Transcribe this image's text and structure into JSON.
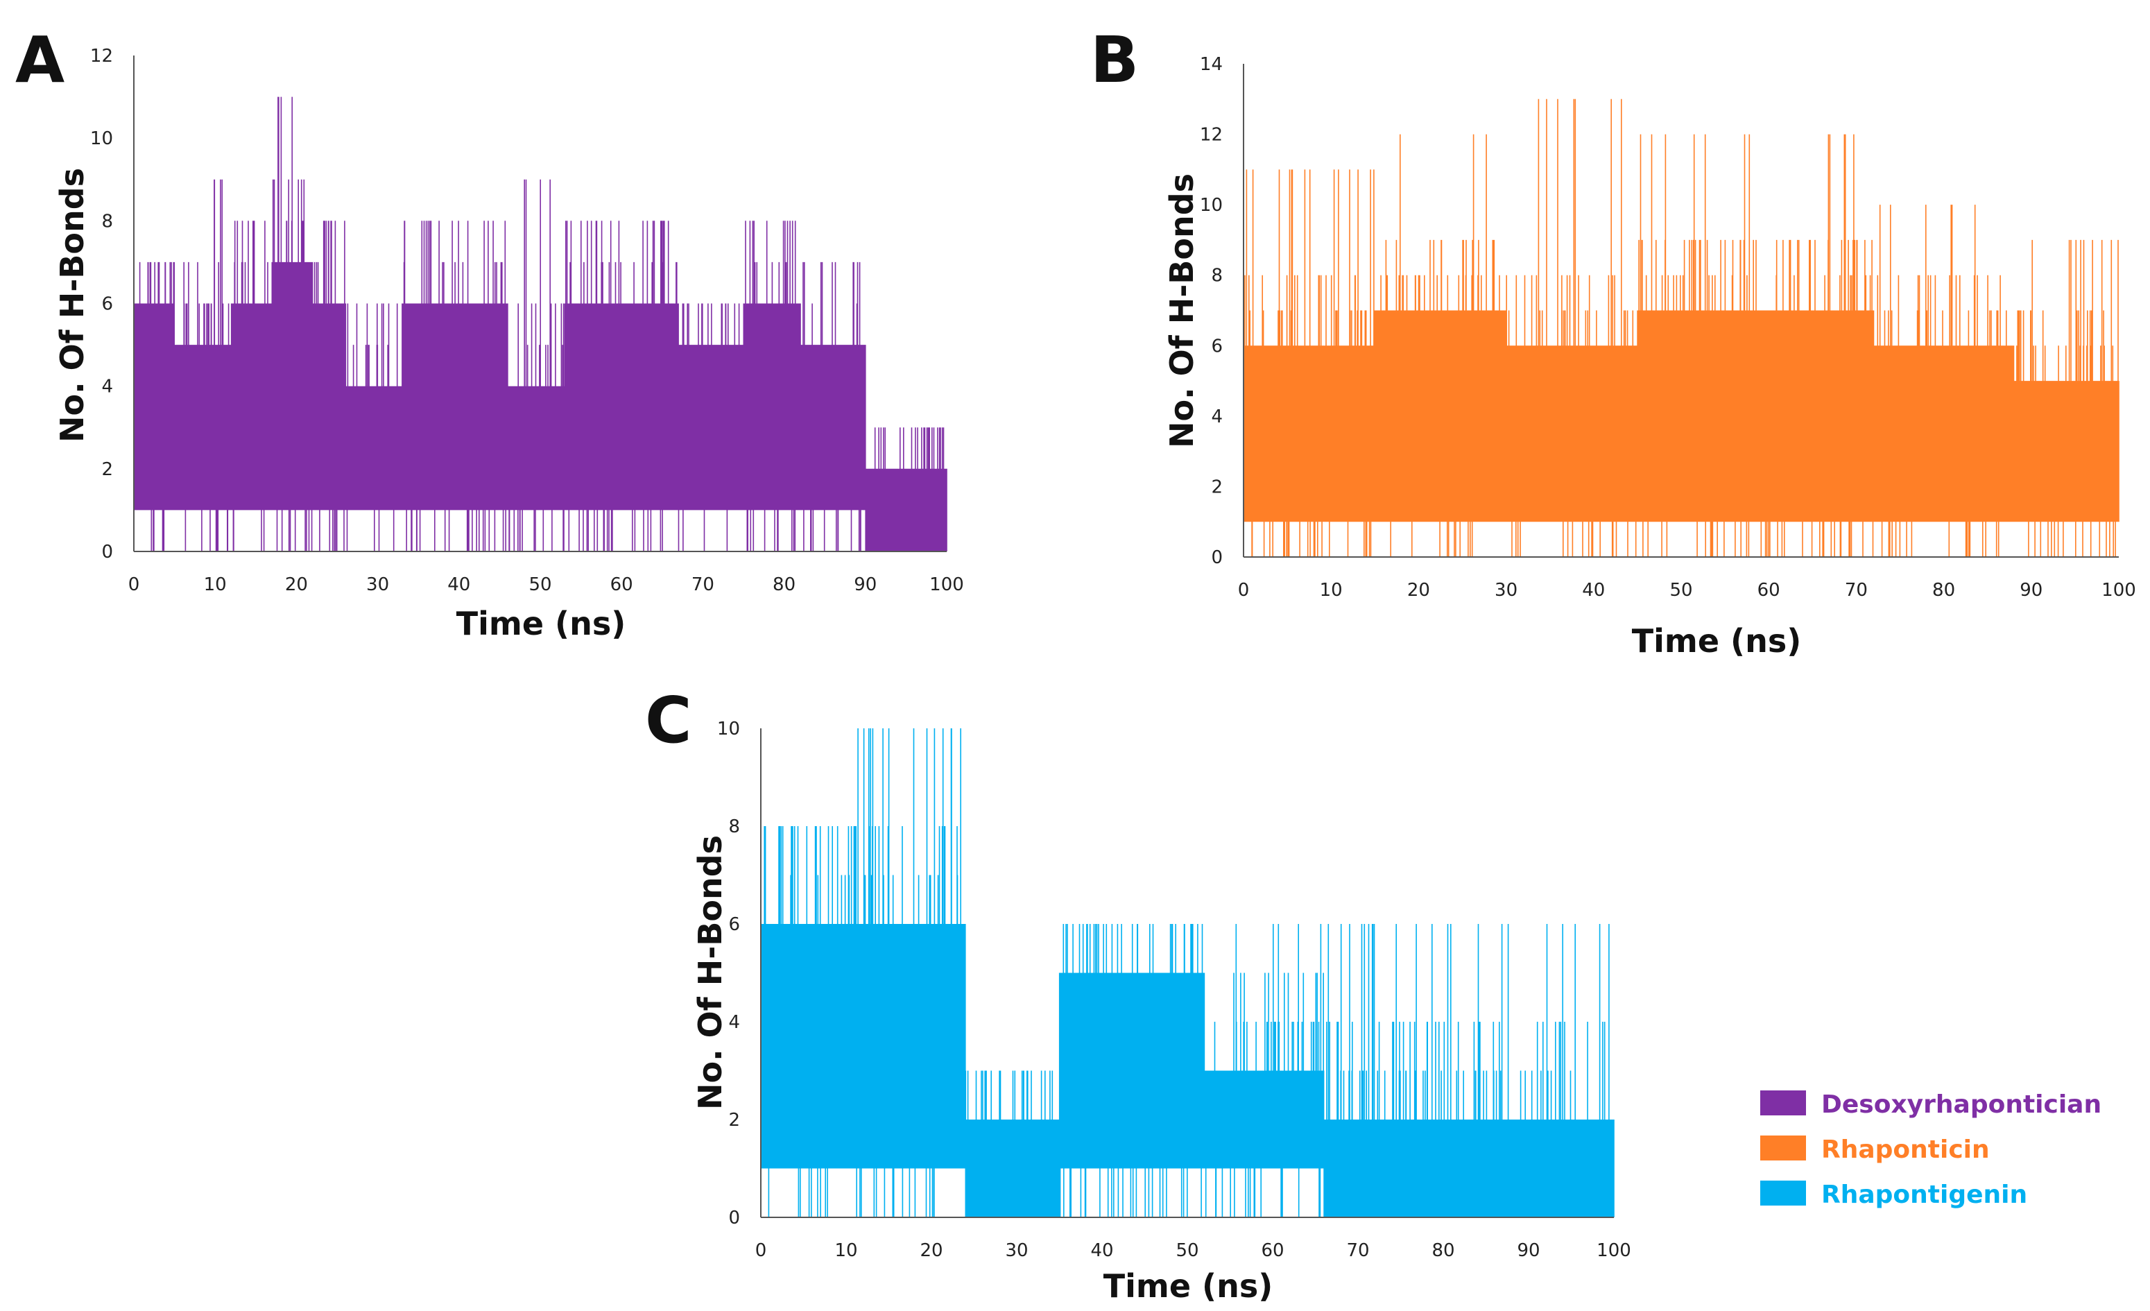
{
  "chart_data": [
    {
      "type": "line",
      "panel": "A",
      "series_name": "Desoxyrhapontician",
      "color": "#7F2FA5",
      "xlabel": "Time (ns)",
      "ylabel": "No. Of H-Bonds",
      "xlim": [
        0,
        100
      ],
      "ylim": [
        0,
        12
      ],
      "xticks": [
        0,
        10,
        20,
        30,
        40,
        50,
        60,
        70,
        80,
        90,
        100
      ],
      "yticks": [
        0,
        2,
        4,
        6,
        8,
        10,
        12
      ],
      "segments": [
        {
          "x": [
            0,
            5
          ],
          "lo": 1,
          "hi": 6,
          "peak": 7
        },
        {
          "x": [
            5,
            12
          ],
          "lo": 1,
          "hi": 5,
          "peak": 9
        },
        {
          "x": [
            12,
            17
          ],
          "lo": 1,
          "hi": 6,
          "peak": 8
        },
        {
          "x": [
            17,
            22
          ],
          "lo": 1,
          "hi": 7,
          "peak": 11
        },
        {
          "x": [
            22,
            26
          ],
          "lo": 1,
          "hi": 6,
          "peak": 8
        },
        {
          "x": [
            26,
            33
          ],
          "lo": 1,
          "hi": 4,
          "peak": 6
        },
        {
          "x": [
            33,
            46
          ],
          "lo": 1,
          "hi": 6,
          "peak": 8
        },
        {
          "x": [
            46,
            53
          ],
          "lo": 1,
          "hi": 4,
          "peak": 9
        },
        {
          "x": [
            53,
            67
          ],
          "lo": 1,
          "hi": 6,
          "peak": 8
        },
        {
          "x": [
            67,
            75
          ],
          "lo": 1,
          "hi": 5,
          "peak": 6
        },
        {
          "x": [
            75,
            82
          ],
          "lo": 1,
          "hi": 6,
          "peak": 8
        },
        {
          "x": [
            82,
            90
          ],
          "lo": 1,
          "hi": 5,
          "peak": 7
        },
        {
          "x": [
            90,
            100
          ],
          "lo": 0,
          "hi": 2,
          "peak": 3
        }
      ]
    },
    {
      "type": "line",
      "panel": "B",
      "series_name": "Rhaponticin",
      "color": "#FF7F27",
      "xlabel": "Time (ns)",
      "ylabel": "No. Of H-Bonds",
      "xlim": [
        0,
        100
      ],
      "ylim": [
        0,
        14
      ],
      "xticks": [
        0,
        10,
        20,
        30,
        40,
        50,
        60,
        70,
        80,
        90,
        100
      ],
      "yticks": [
        0,
        2,
        4,
        6,
        8,
        10,
        12,
        14
      ],
      "segments": [
        {
          "x": [
            0,
            15
          ],
          "lo": 1,
          "hi": 6,
          "peak": 11
        },
        {
          "x": [
            15,
            30
          ],
          "lo": 1,
          "hi": 7,
          "peak": 12
        },
        {
          "x": [
            30,
            45
          ],
          "lo": 1,
          "hi": 6,
          "peak": 13
        },
        {
          "x": [
            45,
            60
          ],
          "lo": 1,
          "hi": 7,
          "peak": 12
        },
        {
          "x": [
            60,
            72
          ],
          "lo": 1,
          "hi": 7,
          "peak": 12
        },
        {
          "x": [
            72,
            88
          ],
          "lo": 1,
          "hi": 6,
          "peak": 10
        },
        {
          "x": [
            88,
            100
          ],
          "lo": 1,
          "hi": 5,
          "peak": 9
        }
      ]
    },
    {
      "type": "line",
      "panel": "C",
      "series_name": "Rhapontigenin",
      "color": "#00B0F0",
      "xlabel": "Time (ns)",
      "ylabel": "No. Of H-Bonds",
      "xlim": [
        0,
        100
      ],
      "ylim": [
        0,
        10
      ],
      "xticks": [
        0,
        10,
        20,
        30,
        40,
        50,
        60,
        70,
        80,
        90,
        100
      ],
      "yticks": [
        0,
        2,
        4,
        6,
        8,
        10
      ],
      "segments": [
        {
          "x": [
            0,
            9
          ],
          "lo": 1,
          "hi": 6,
          "peak": 8
        },
        {
          "x": [
            9,
            24
          ],
          "lo": 1,
          "hi": 6,
          "peak": 10
        },
        {
          "x": [
            24,
            35
          ],
          "lo": 0,
          "hi": 2,
          "peak": 3
        },
        {
          "x": [
            35,
            52
          ],
          "lo": 1,
          "hi": 5,
          "peak": 6
        },
        {
          "x": [
            52,
            66
          ],
          "lo": 1,
          "hi": 3,
          "peak": 6
        },
        {
          "x": [
            66,
            80
          ],
          "lo": 0,
          "hi": 2,
          "peak": 6
        },
        {
          "x": [
            80,
            100
          ],
          "lo": 0,
          "hi": 2,
          "peak": 6
        }
      ]
    }
  ],
  "legend": {
    "position": "bottom-right",
    "entries": [
      {
        "label": "Desoxyrhapontician",
        "color": "#7F2FA5"
      },
      {
        "label": "Rhaponticin",
        "color": "#FF7F27"
      },
      {
        "label": "Rhapontigenin",
        "color": "#00B0F0"
      }
    ]
  }
}
